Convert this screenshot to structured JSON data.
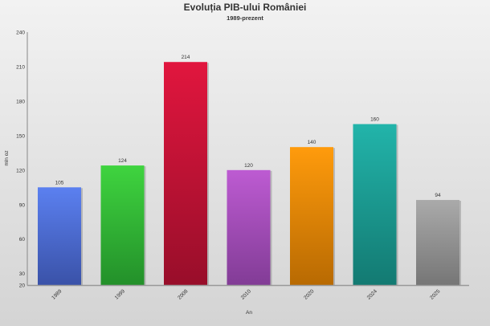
{
  "chart_data": {
    "type": "bar",
    "title": "Evoluția PIB-ului României",
    "subtitle": "1989-prezent",
    "xlabel": "An",
    "ylabel": "mln oz",
    "ylim": [
      20,
      240
    ],
    "yticks": [
      20,
      30,
      60,
      90,
      120,
      150,
      180,
      210,
      240
    ],
    "categories": [
      "1989",
      "1999",
      "2008",
      "2010",
      "2020",
      "2024",
      "2025"
    ],
    "values": [
      105,
      124,
      214,
      120,
      140,
      160,
      94
    ],
    "colors": [
      [
        "#5b80f0",
        "#3a52a8"
      ],
      [
        "#3fd43f",
        "#23902a"
      ],
      [
        "#e1163e",
        "#980e2a"
      ],
      [
        "#bd5bd2",
        "#823c96"
      ],
      [
        "#ff9b0c",
        "#b86a02"
      ],
      [
        "#22b4aa",
        "#137a72"
      ],
      [
        "#aaaaaa",
        "#767676"
      ]
    ],
    "grid": false,
    "legend": "none"
  }
}
